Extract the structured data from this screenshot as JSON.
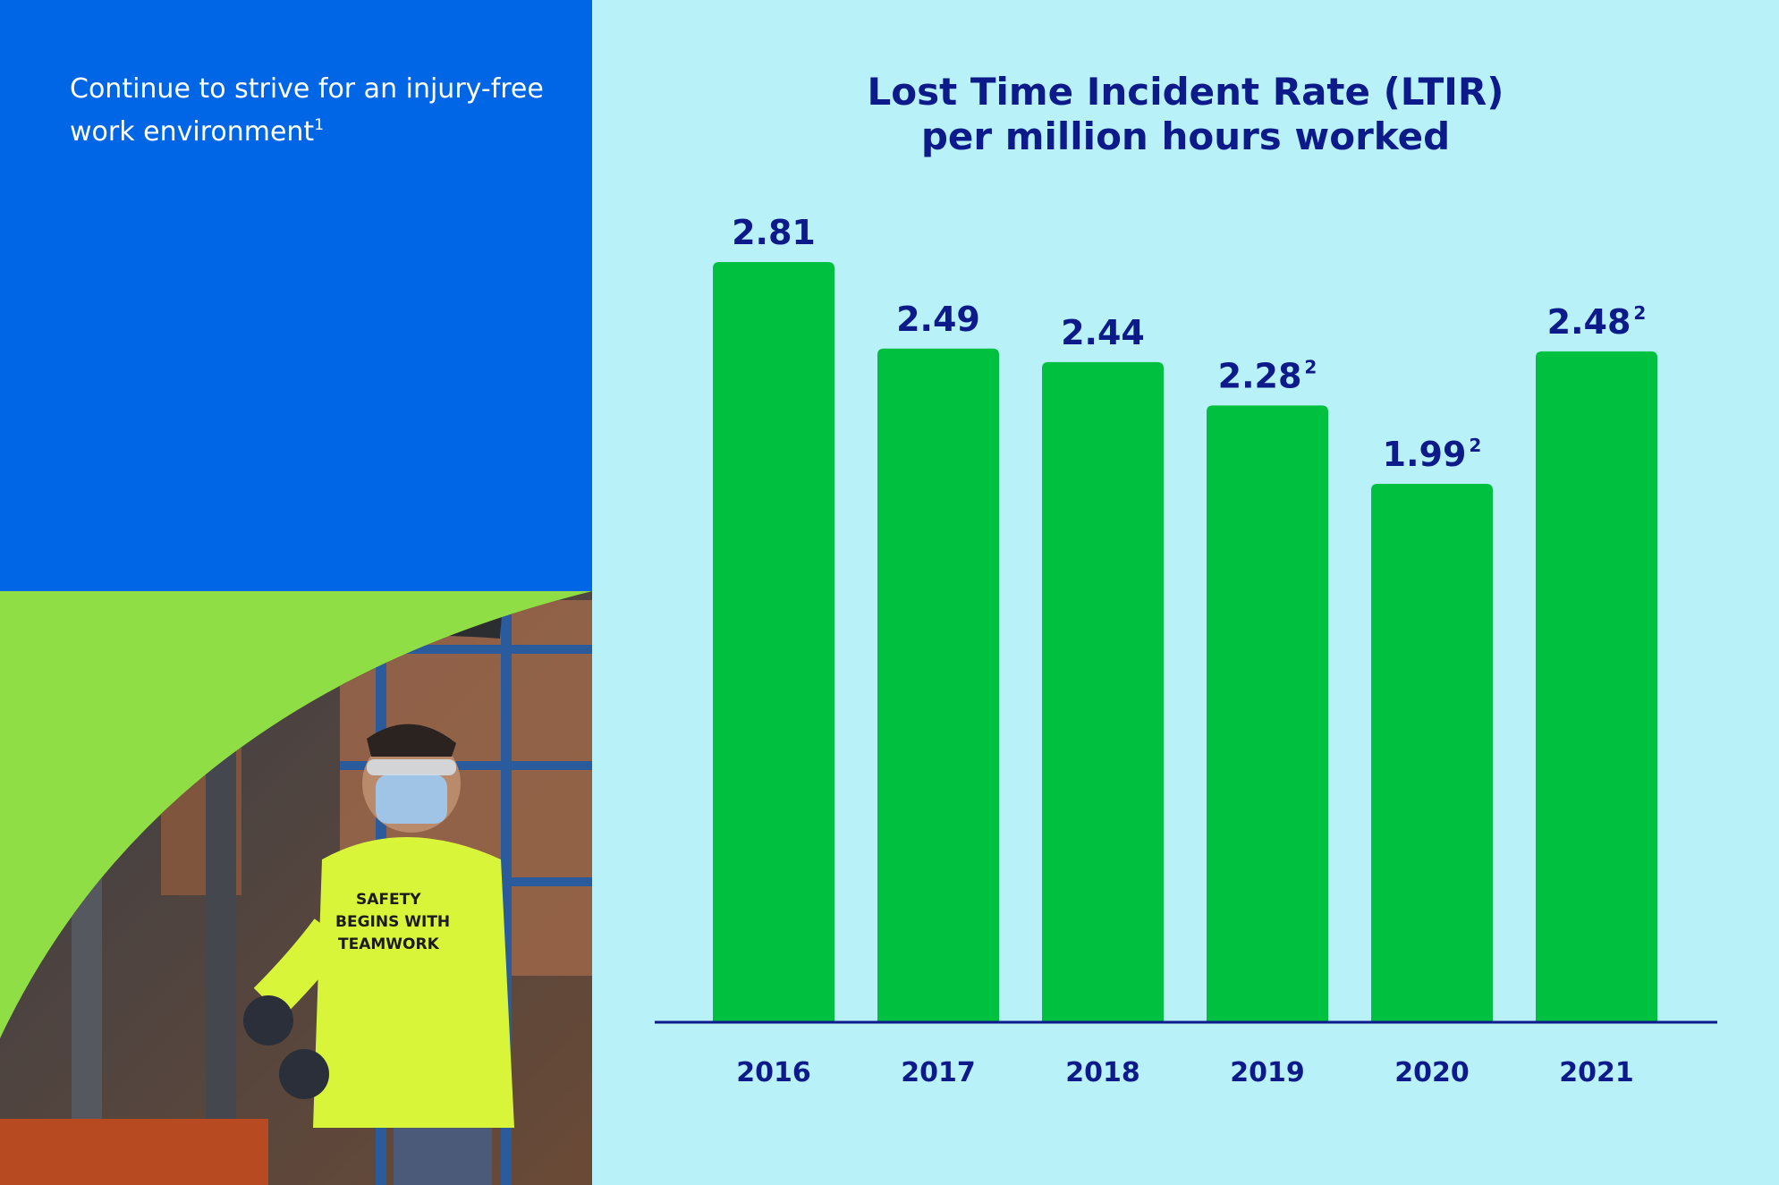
{
  "left_panel": {
    "tagline": "Continue to strive for an injury-free work environment",
    "tagline_footnote": "1",
    "photo_shirt_text": [
      "SAFETY",
      "BEGINS WITH",
      "TEAMWORK"
    ]
  },
  "colors": {
    "blue_panel": "#0166e6",
    "green_panel": "#8fde45",
    "chart_background": "#b8f2f8",
    "bar": "#00c040",
    "text": "#0d1a8a"
  },
  "chart_data": {
    "type": "bar",
    "title": "Lost Time Incident Rate (LTIR)",
    "subtitle": "per million hours worked",
    "categories": [
      "2016",
      "2017",
      "2018",
      "2019",
      "2020",
      "2021"
    ],
    "values": [
      2.81,
      2.49,
      2.44,
      2.28,
      1.99,
      2.48
    ],
    "value_labels": [
      "2.81",
      "2.49",
      "2.44",
      "2.28",
      "1.99",
      "2.48"
    ],
    "footnotes": [
      "",
      "",
      "",
      "2",
      "2",
      "2"
    ],
    "ylim": [
      0,
      2.81
    ],
    "grid": false,
    "legend": "none"
  }
}
